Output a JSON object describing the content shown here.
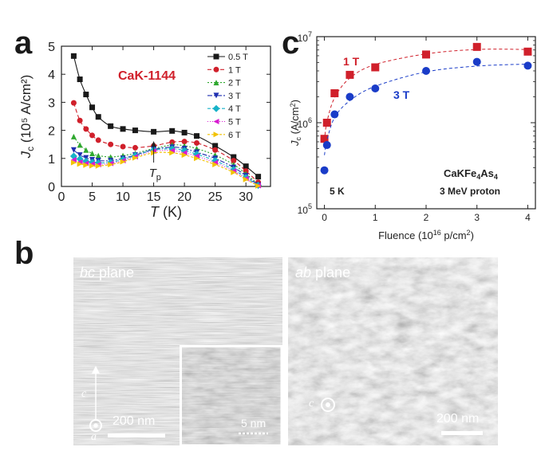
{
  "panel_labels": {
    "a": "a",
    "b": "b",
    "c": "c"
  },
  "panel_b": {
    "left": {
      "title_italic": "bc",
      "title_rest": " plane",
      "scale": "200 nm",
      "axis_c": "c",
      "axis_a": "a",
      "inset_scale": "5 nm"
    },
    "right": {
      "title_italic": "ab",
      "title_rest": " plane",
      "scale": "200 nm",
      "axis_c": "c"
    }
  },
  "chart_data": [
    {
      "id": "a",
      "type": "line",
      "title": "",
      "xlabel_italic": "T",
      "xlabel_rest": " (K)",
      "ylabel_italic": "J",
      "ylabel_sub": "c",
      "ylabel_rest": " (10⁵ A/cm²)",
      "xlim": [
        0,
        34
      ],
      "ylim": [
        0,
        5
      ],
      "xticks": [
        0,
        5,
        10,
        15,
        20,
        25,
        30
      ],
      "yticks": [
        0,
        1,
        2,
        3,
        4,
        5
      ],
      "annotation": "CaK-1144",
      "annotation_color": "#d0202b",
      "tp_label_italic": "T",
      "tp_label_sub": "p",
      "tp_x": 15,
      "legend_position": "top-right",
      "series": [
        {
          "name": "0.5 T",
          "color": "#1a1a1a",
          "marker": "square",
          "dash": "solid",
          "x": [
            2,
            3,
            4,
            5,
            6,
            8,
            10,
            12,
            15,
            18,
            20,
            22,
            25,
            28,
            30,
            32
          ],
          "y": [
            4.65,
            3.82,
            3.28,
            2.82,
            2.48,
            2.15,
            2.05,
            2.0,
            1.95,
            1.98,
            1.92,
            1.8,
            1.45,
            1.05,
            0.72,
            0.35
          ]
        },
        {
          "name": "1 T",
          "color": "#d0202b",
          "marker": "circle",
          "dash": "5,3",
          "x": [
            2,
            3,
            4,
            5,
            6,
            8,
            10,
            12,
            15,
            18,
            20,
            22,
            25,
            28,
            30,
            32
          ],
          "y": [
            2.98,
            2.35,
            2.05,
            1.82,
            1.65,
            1.5,
            1.42,
            1.38,
            1.45,
            1.58,
            1.6,
            1.55,
            1.3,
            0.92,
            0.55,
            0.15
          ]
        },
        {
          "name": "2 T",
          "color": "#2fa82f",
          "marker": "triangle-up",
          "dash": "2,2",
          "x": [
            2,
            3,
            4,
            5,
            6,
            8,
            10,
            12,
            15,
            18,
            20,
            22,
            25,
            28,
            30,
            32
          ],
          "y": [
            1.78,
            1.48,
            1.3,
            1.18,
            1.1,
            1.05,
            1.1,
            1.18,
            1.35,
            1.48,
            1.45,
            1.35,
            1.12,
            0.78,
            0.45,
            0.08
          ]
        },
        {
          "name": "3 T",
          "color": "#1f2fb0",
          "marker": "triangle-down",
          "dash": "6,2,2,2",
          "x": [
            2,
            3,
            4,
            5,
            6,
            8,
            10,
            12,
            15,
            18,
            20,
            22,
            25,
            28,
            30,
            32
          ],
          "y": [
            1.3,
            1.12,
            1.02,
            0.95,
            0.92,
            0.92,
            1.0,
            1.12,
            1.32,
            1.4,
            1.35,
            1.22,
            1.0,
            0.68,
            0.38,
            0.05
          ]
        },
        {
          "name": "4 T",
          "color": "#17b2c8",
          "marker": "diamond",
          "dash": "4,2,1,2",
          "x": [
            2,
            3,
            4,
            5,
            6,
            8,
            10,
            12,
            15,
            18,
            20,
            22,
            25,
            28,
            30,
            32
          ],
          "y": [
            1.08,
            0.98,
            0.9,
            0.86,
            0.84,
            0.86,
            0.96,
            1.1,
            1.3,
            1.34,
            1.28,
            1.15,
            0.92,
            0.6,
            0.32,
            0.04
          ]
        },
        {
          "name": "5 T",
          "color": "#d81bd0",
          "marker": "triangle-left",
          "dash": "1,2",
          "x": [
            2,
            3,
            4,
            5,
            6,
            8,
            10,
            12,
            15,
            18,
            20,
            22,
            25,
            28,
            30,
            32
          ],
          "y": [
            0.95,
            0.87,
            0.82,
            0.8,
            0.78,
            0.82,
            0.92,
            1.06,
            1.26,
            1.28,
            1.2,
            1.08,
            0.85,
            0.55,
            0.28,
            0.03
          ]
        },
        {
          "name": "6 T",
          "color": "#f2c200",
          "marker": "triangle-right",
          "dash": "3,2",
          "x": [
            2,
            3,
            4,
            5,
            6,
            8,
            10,
            12,
            15,
            18,
            20,
            22,
            25,
            28,
            30,
            32
          ],
          "y": [
            0.85,
            0.8,
            0.76,
            0.74,
            0.73,
            0.78,
            0.88,
            1.02,
            1.2,
            1.2,
            1.12,
            1.0,
            0.78,
            0.5,
            0.25,
            0.02
          ]
        }
      ]
    },
    {
      "id": "c",
      "type": "scatter",
      "title": "",
      "xlabel": "Fluence (10",
      "xlabel_sup": "16",
      "xlabel_rest": " p/cm",
      "xlabel_sup2": "2",
      "xlabel_close": ")",
      "ylabel_italic": "J",
      "ylabel_sub": "c",
      "ylabel_rest": " (A/cm",
      "ylabel_sup": "2",
      "ylabel_close": ")",
      "yscale": "log",
      "xlim": [
        -0.15,
        4.15
      ],
      "ylim": [
        100000,
        10000000
      ],
      "xticks": [
        0,
        1,
        2,
        3,
        4
      ],
      "yticks": [
        {
          "base": "10",
          "exp": "5",
          "value": 100000
        },
        {
          "base": "10",
          "exp": "6",
          "value": 1000000
        },
        {
          "base": "10",
          "exp": "7",
          "value": 10000000
        }
      ],
      "annotations": {
        "compound": "CaKFe",
        "compound_sub1": "4",
        "compound_mid": "As",
        "compound_sub2": "4",
        "temp": "5 K",
        "proton": "3 MeV proton"
      },
      "series": [
        {
          "name": "1 T",
          "color": "#d0202b",
          "marker": "square",
          "x": [
            0,
            0.05,
            0.2,
            0.5,
            1,
            2,
            3,
            4
          ],
          "y": [
            650000,
            1000000,
            2200000,
            3600000,
            4400000,
            6200000,
            7600000,
            6700000
          ],
          "fit_y": [
            620000,
            1020000,
            1950000,
            3300000,
            4750000,
            6300000,
            7100000,
            7100000
          ]
        },
        {
          "name": "3 T",
          "color": "#1a3cc8",
          "marker": "circle",
          "x": [
            0,
            0.05,
            0.2,
            0.5,
            1,
            2,
            3,
            4
          ],
          "y": [
            280000,
            550000,
            1250000,
            2000000,
            2500000,
            4000000,
            5100000,
            4600000
          ],
          "fit_y": [
            420000,
            620000,
            1150000,
            1800000,
            2650000,
            3900000,
            4550000,
            4800000
          ]
        }
      ]
    }
  ]
}
